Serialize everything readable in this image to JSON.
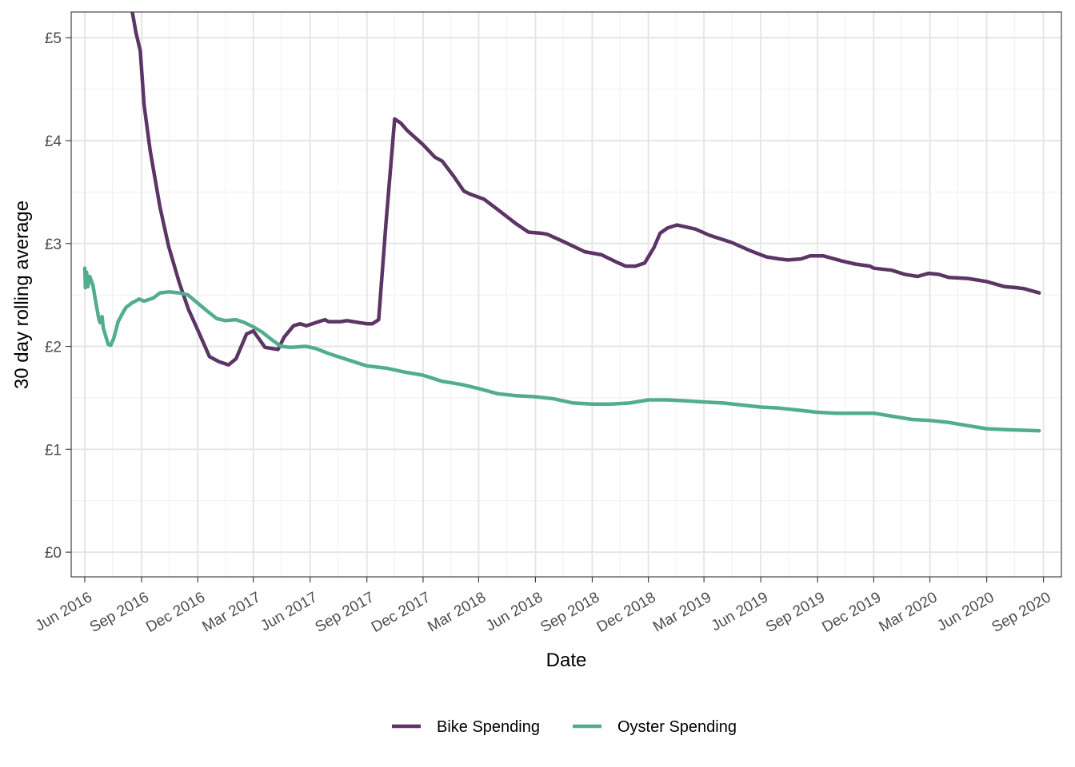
{
  "chart_data": {
    "type": "line",
    "title": "",
    "xlabel": "Date",
    "ylabel": "30 day rolling average",
    "x_axis": {
      "type": "date",
      "range": [
        "2016-05-10",
        "2020-09-30"
      ],
      "ticks": [
        {
          "date": "2016-06-01",
          "label": "Jun 2016"
        },
        {
          "date": "2016-09-01",
          "label": "Sep 2016"
        },
        {
          "date": "2016-12-01",
          "label": "Dec 2016"
        },
        {
          "date": "2017-03-01",
          "label": "Mar 2017"
        },
        {
          "date": "2017-06-01",
          "label": "Jun 2017"
        },
        {
          "date": "2017-09-01",
          "label": "Sep 2017"
        },
        {
          "date": "2017-12-01",
          "label": "Dec 2017"
        },
        {
          "date": "2018-03-01",
          "label": "Mar 2018"
        },
        {
          "date": "2018-06-01",
          "label": "Jun 2018"
        },
        {
          "date": "2018-09-01",
          "label": "Sep 2018"
        },
        {
          "date": "2018-12-01",
          "label": "Dec 2018"
        },
        {
          "date": "2019-03-01",
          "label": "Mar 2019"
        },
        {
          "date": "2019-06-01",
          "label": "Jun 2019"
        },
        {
          "date": "2019-09-01",
          "label": "Sep 2019"
        },
        {
          "date": "2019-12-01",
          "label": "Dec 2019"
        },
        {
          "date": "2020-03-01",
          "label": "Mar 2020"
        },
        {
          "date": "2020-06-01",
          "label": "Jun 2020"
        },
        {
          "date": "2020-09-01",
          "label": "Sep 2020"
        }
      ],
      "minor_ticks": [
        "2016-07-16",
        "2016-10-16",
        "2017-01-15",
        "2017-04-15",
        "2017-07-16",
        "2017-10-16",
        "2018-01-15",
        "2018-04-15",
        "2018-07-16",
        "2018-10-16",
        "2019-01-15",
        "2019-04-15",
        "2019-07-16",
        "2019-10-16",
        "2020-01-15",
        "2020-04-15",
        "2020-07-16"
      ]
    },
    "y_axis": {
      "range": [
        -0.24,
        5.25
      ],
      "ticks": [
        {
          "value": 0,
          "label": "£0"
        },
        {
          "value": 1,
          "label": "£1"
        },
        {
          "value": 2,
          "label": "£2"
        },
        {
          "value": 3,
          "label": "£3"
        },
        {
          "value": 4,
          "label": "£4"
        },
        {
          "value": 5,
          "label": "£5"
        }
      ],
      "minor_ticks": [
        0.5,
        1.5,
        2.5,
        3.5,
        4.5
      ]
    },
    "grid": true,
    "legend": {
      "position": "bottom"
    },
    "series": [
      {
        "name": "Bike Spending",
        "color": "#5c3566",
        "points": [
          [
            "2016-08-05",
            5.55
          ],
          [
            "2016-08-17",
            5.25
          ],
          [
            "2016-08-23",
            5.05
          ],
          [
            "2016-08-30",
            4.87
          ],
          [
            "2016-09-05",
            4.35
          ],
          [
            "2016-09-15",
            3.9
          ],
          [
            "2016-10-01",
            3.35
          ],
          [
            "2016-10-15",
            2.97
          ],
          [
            "2016-11-01",
            2.62
          ],
          [
            "2016-11-16",
            2.36
          ],
          [
            "2016-12-01",
            2.16
          ],
          [
            "2016-12-20",
            1.9
          ],
          [
            "2017-01-05",
            1.85
          ],
          [
            "2017-01-20",
            1.82
          ],
          [
            "2017-02-01",
            1.88
          ],
          [
            "2017-02-18",
            2.12
          ],
          [
            "2017-03-01",
            2.15
          ],
          [
            "2017-03-20",
            1.99
          ],
          [
            "2017-04-10",
            1.97
          ],
          [
            "2017-04-20",
            2.09
          ],
          [
            "2017-05-05",
            2.2
          ],
          [
            "2017-05-16",
            2.22
          ],
          [
            "2017-05-26",
            2.2
          ],
          [
            "2017-06-10",
            2.23
          ],
          [
            "2017-06-25",
            2.26
          ],
          [
            "2017-07-01",
            2.24
          ],
          [
            "2017-07-20",
            2.24
          ],
          [
            "2017-07-31",
            2.25
          ],
          [
            "2017-08-20",
            2.23
          ],
          [
            "2017-09-01",
            2.22
          ],
          [
            "2017-09-10",
            2.22
          ],
          [
            "2017-09-20",
            2.26
          ],
          [
            "2017-10-02",
            3.2
          ],
          [
            "2017-10-16",
            4.21
          ],
          [
            "2017-10-26",
            4.17
          ],
          [
            "2017-11-05",
            4.1
          ],
          [
            "2017-12-01",
            3.96
          ],
          [
            "2017-12-20",
            3.84
          ],
          [
            "2018-01-01",
            3.8
          ],
          [
            "2018-01-20",
            3.65
          ],
          [
            "2018-02-05",
            3.51
          ],
          [
            "2018-02-15",
            3.48
          ],
          [
            "2018-03-10",
            3.43
          ],
          [
            "2018-04-01",
            3.33
          ],
          [
            "2018-05-01",
            3.19
          ],
          [
            "2018-05-21",
            3.11
          ],
          [
            "2018-06-10",
            3.1
          ],
          [
            "2018-06-20",
            3.09
          ],
          [
            "2018-07-16",
            3.02
          ],
          [
            "2018-08-20",
            2.92
          ],
          [
            "2018-09-16",
            2.89
          ],
          [
            "2018-10-10",
            2.82
          ],
          [
            "2018-10-25",
            2.78
          ],
          [
            "2018-11-10",
            2.78
          ],
          [
            "2018-11-25",
            2.81
          ],
          [
            "2018-12-10",
            2.96
          ],
          [
            "2018-12-20",
            3.1
          ],
          [
            "2019-01-01",
            3.15
          ],
          [
            "2019-01-16",
            3.18
          ],
          [
            "2019-02-15",
            3.14
          ],
          [
            "2019-03-10",
            3.08
          ],
          [
            "2019-04-15",
            3.01
          ],
          [
            "2019-05-15",
            2.93
          ],
          [
            "2019-06-10",
            2.87
          ],
          [
            "2019-07-01",
            2.85
          ],
          [
            "2019-07-15",
            2.84
          ],
          [
            "2019-08-05",
            2.85
          ],
          [
            "2019-08-20",
            2.88
          ],
          [
            "2019-09-10",
            2.88
          ],
          [
            "2019-10-10",
            2.83
          ],
          [
            "2019-11-01",
            2.8
          ],
          [
            "2019-11-25",
            2.78
          ],
          [
            "2019-12-01",
            2.76
          ],
          [
            "2019-12-30",
            2.74
          ],
          [
            "2020-01-20",
            2.7
          ],
          [
            "2020-02-10",
            2.68
          ],
          [
            "2020-02-28",
            2.71
          ],
          [
            "2020-03-15",
            2.7
          ],
          [
            "2020-04-01",
            2.67
          ],
          [
            "2020-05-01",
            2.66
          ],
          [
            "2020-06-01",
            2.63
          ],
          [
            "2020-06-30",
            2.58
          ],
          [
            "2020-07-20",
            2.57
          ],
          [
            "2020-08-01",
            2.56
          ],
          [
            "2020-08-25",
            2.52
          ]
        ]
      },
      {
        "name": "Oyster Spending",
        "color": "#52ad8e",
        "points": [
          [
            "2016-06-01",
            2.76
          ],
          [
            "2016-06-02",
            2.57
          ],
          [
            "2016-06-04",
            2.72
          ],
          [
            "2016-06-06",
            2.58
          ],
          [
            "2016-06-09",
            2.68
          ],
          [
            "2016-06-14",
            2.6
          ],
          [
            "2016-06-18",
            2.46
          ],
          [
            "2016-06-24",
            2.26
          ],
          [
            "2016-06-26",
            2.23
          ],
          [
            "2016-06-29",
            2.29
          ],
          [
            "2016-07-01",
            2.18
          ],
          [
            "2016-07-05",
            2.1
          ],
          [
            "2016-07-09",
            2.02
          ],
          [
            "2016-07-13",
            2.01
          ],
          [
            "2016-07-18",
            2.08
          ],
          [
            "2016-07-25",
            2.24
          ],
          [
            "2016-08-01",
            2.32
          ],
          [
            "2016-08-07",
            2.38
          ],
          [
            "2016-08-16",
            2.42
          ],
          [
            "2016-08-28",
            2.46
          ],
          [
            "2016-09-05",
            2.44
          ],
          [
            "2016-09-20",
            2.47
          ],
          [
            "2016-10-01",
            2.52
          ],
          [
            "2016-10-15",
            2.53
          ],
          [
            "2016-11-01",
            2.52
          ],
          [
            "2016-11-15",
            2.5
          ],
          [
            "2016-12-01",
            2.42
          ],
          [
            "2016-12-15",
            2.35
          ],
          [
            "2017-01-01",
            2.27
          ],
          [
            "2017-01-15",
            2.25
          ],
          [
            "2017-02-01",
            2.26
          ],
          [
            "2017-02-15",
            2.23
          ],
          [
            "2017-03-01",
            2.19
          ],
          [
            "2017-03-15",
            2.14
          ],
          [
            "2017-04-01",
            2.06
          ],
          [
            "2017-04-15",
            2.0
          ],
          [
            "2017-05-01",
            1.99
          ],
          [
            "2017-05-25",
            2.0
          ],
          [
            "2017-06-10",
            1.98
          ],
          [
            "2017-07-01",
            1.93
          ],
          [
            "2017-08-01",
            1.87
          ],
          [
            "2017-09-01",
            1.81
          ],
          [
            "2017-10-01",
            1.79
          ],
          [
            "2017-11-01",
            1.75
          ],
          [
            "2017-12-01",
            1.72
          ],
          [
            "2018-01-01",
            1.66
          ],
          [
            "2018-02-01",
            1.63
          ],
          [
            "2018-03-01",
            1.59
          ],
          [
            "2018-04-01",
            1.54
          ],
          [
            "2018-05-01",
            1.52
          ],
          [
            "2018-06-01",
            1.51
          ],
          [
            "2018-07-01",
            1.49
          ],
          [
            "2018-08-01",
            1.45
          ],
          [
            "2018-09-01",
            1.44
          ],
          [
            "2018-10-01",
            1.44
          ],
          [
            "2018-11-01",
            1.45
          ],
          [
            "2018-12-01",
            1.48
          ],
          [
            "2019-01-01",
            1.48
          ],
          [
            "2019-02-01",
            1.47
          ],
          [
            "2019-03-01",
            1.46
          ],
          [
            "2019-04-01",
            1.45
          ],
          [
            "2019-05-01",
            1.43
          ],
          [
            "2019-06-01",
            1.41
          ],
          [
            "2019-07-01",
            1.4
          ],
          [
            "2019-08-01",
            1.38
          ],
          [
            "2019-09-01",
            1.36
          ],
          [
            "2019-10-01",
            1.35
          ],
          [
            "2019-11-01",
            1.35
          ],
          [
            "2019-12-01",
            1.35
          ],
          [
            "2020-01-01",
            1.32
          ],
          [
            "2020-02-01",
            1.29
          ],
          [
            "2020-03-01",
            1.28
          ],
          [
            "2020-04-01",
            1.26
          ],
          [
            "2020-05-01",
            1.23
          ],
          [
            "2020-06-01",
            1.2
          ],
          [
            "2020-07-01",
            1.19
          ],
          [
            "2020-08-25",
            1.18
          ]
        ]
      }
    ]
  }
}
